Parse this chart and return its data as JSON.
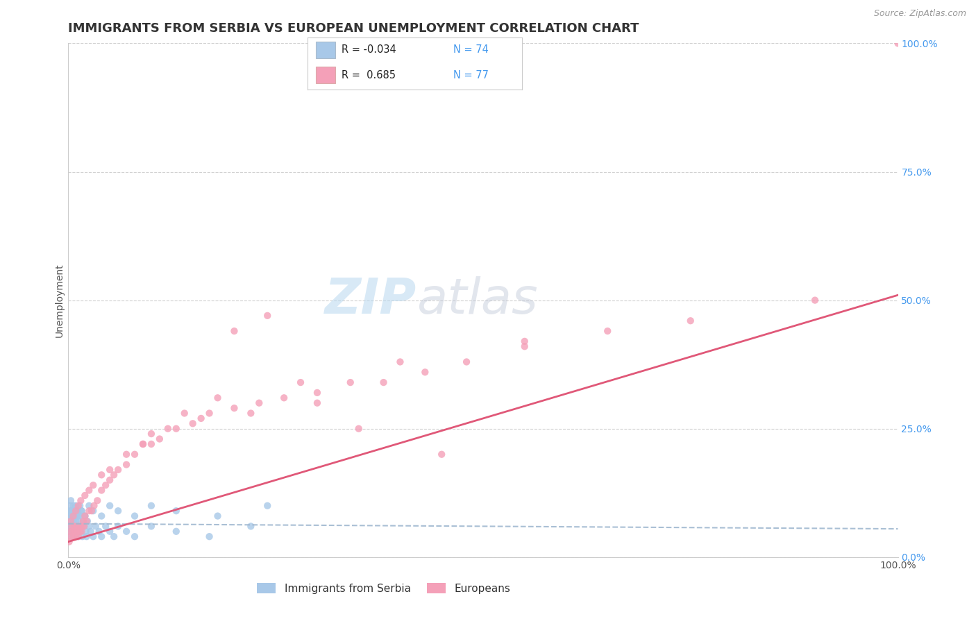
{
  "title": "IMMIGRANTS FROM SERBIA VS EUROPEAN UNEMPLOYMENT CORRELATION CHART",
  "source": "Source: ZipAtlas.com",
  "ylabel": "Unemployment",
  "ytick_labels": [
    "0.0%",
    "25.0%",
    "50.0%",
    "75.0%",
    "100.0%"
  ],
  "ytick_values": [
    0.0,
    0.25,
    0.5,
    0.75,
    1.0
  ],
  "xlim": [
    0.0,
    1.0
  ],
  "ylim": [
    0.0,
    1.0
  ],
  "color_serbia": "#a8c8e8",
  "color_europeans": "#f4a0b8",
  "color_serbia_line": "#a0b8d0",
  "color_europeans_line": "#e05878",
  "watermark_zip": "ZIP",
  "watermark_atlas": "atlas",
  "background": "#ffffff",
  "grid_color": "#cccccc",
  "title_color": "#333333",
  "title_fontsize": 13,
  "serbia_scatter_x": [
    0.001,
    0.001,
    0.002,
    0.002,
    0.003,
    0.003,
    0.004,
    0.004,
    0.005,
    0.005,
    0.006,
    0.006,
    0.007,
    0.007,
    0.008,
    0.008,
    0.009,
    0.009,
    0.01,
    0.01,
    0.011,
    0.011,
    0.012,
    0.013,
    0.014,
    0.015,
    0.015,
    0.016,
    0.017,
    0.018,
    0.019,
    0.02,
    0.021,
    0.022,
    0.023,
    0.025,
    0.027,
    0.03,
    0.033,
    0.037,
    0.04,
    0.045,
    0.05,
    0.055,
    0.06,
    0.07,
    0.08,
    0.1,
    0.13,
    0.17,
    0.22,
    0.002,
    0.003,
    0.004,
    0.005,
    0.006,
    0.007,
    0.008,
    0.009,
    0.01,
    0.012,
    0.014,
    0.016,
    0.02,
    0.025,
    0.03,
    0.04,
    0.05,
    0.06,
    0.08,
    0.1,
    0.13,
    0.18,
    0.24
  ],
  "serbia_scatter_y": [
    0.06,
    0.08,
    0.05,
    0.09,
    0.04,
    0.07,
    0.06,
    0.08,
    0.05,
    0.09,
    0.04,
    0.07,
    0.06,
    0.08,
    0.05,
    0.09,
    0.04,
    0.07,
    0.06,
    0.08,
    0.05,
    0.09,
    0.04,
    0.07,
    0.06,
    0.08,
    0.05,
    0.09,
    0.04,
    0.07,
    0.06,
    0.08,
    0.05,
    0.04,
    0.07,
    0.06,
    0.05,
    0.04,
    0.06,
    0.05,
    0.04,
    0.06,
    0.05,
    0.04,
    0.06,
    0.05,
    0.04,
    0.06,
    0.05,
    0.04,
    0.06,
    0.1,
    0.11,
    0.09,
    0.08,
    0.1,
    0.09,
    0.08,
    0.1,
    0.09,
    0.08,
    0.1,
    0.09,
    0.08,
    0.1,
    0.09,
    0.08,
    0.1,
    0.09,
    0.08,
    0.1,
    0.09,
    0.08,
    0.1
  ],
  "euro_scatter_x": [
    0.001,
    0.002,
    0.003,
    0.004,
    0.005,
    0.006,
    0.007,
    0.008,
    0.009,
    0.01,
    0.011,
    0.012,
    0.013,
    0.014,
    0.015,
    0.016,
    0.017,
    0.018,
    0.019,
    0.02,
    0.022,
    0.025,
    0.028,
    0.031,
    0.035,
    0.04,
    0.045,
    0.05,
    0.055,
    0.06,
    0.07,
    0.08,
    0.09,
    0.1,
    0.11,
    0.13,
    0.15,
    0.17,
    0.2,
    0.23,
    0.26,
    0.3,
    0.34,
    0.38,
    0.43,
    0.48,
    0.55,
    0.65,
    0.75,
    0.9,
    0.003,
    0.006,
    0.009,
    0.012,
    0.015,
    0.02,
    0.025,
    0.03,
    0.04,
    0.05,
    0.07,
    0.09,
    0.12,
    0.16,
    0.22,
    0.3,
    0.2,
    0.24,
    0.28,
    0.1,
    0.18,
    0.14,
    0.4,
    0.55,
    0.35,
    0.45,
    1.0
  ],
  "euro_scatter_y": [
    0.03,
    0.05,
    0.04,
    0.06,
    0.05,
    0.04,
    0.06,
    0.05,
    0.04,
    0.06,
    0.05,
    0.04,
    0.06,
    0.05,
    0.06,
    0.05,
    0.06,
    0.07,
    0.06,
    0.08,
    0.07,
    0.09,
    0.09,
    0.1,
    0.11,
    0.13,
    0.14,
    0.15,
    0.16,
    0.17,
    0.18,
    0.2,
    0.22,
    0.22,
    0.23,
    0.25,
    0.26,
    0.28,
    0.29,
    0.3,
    0.31,
    0.32,
    0.34,
    0.34,
    0.36,
    0.38,
    0.42,
    0.44,
    0.46,
    0.5,
    0.07,
    0.08,
    0.09,
    0.1,
    0.11,
    0.12,
    0.13,
    0.14,
    0.16,
    0.17,
    0.2,
    0.22,
    0.25,
    0.27,
    0.28,
    0.3,
    0.44,
    0.47,
    0.34,
    0.24,
    0.31,
    0.28,
    0.38,
    0.41,
    0.25,
    0.2,
    1.0
  ],
  "legend_serbia_r": "R = -0.034",
  "legend_serbia_n": "N = 74",
  "legend_euro_r": "R =  0.685",
  "legend_euro_n": "N = 77"
}
